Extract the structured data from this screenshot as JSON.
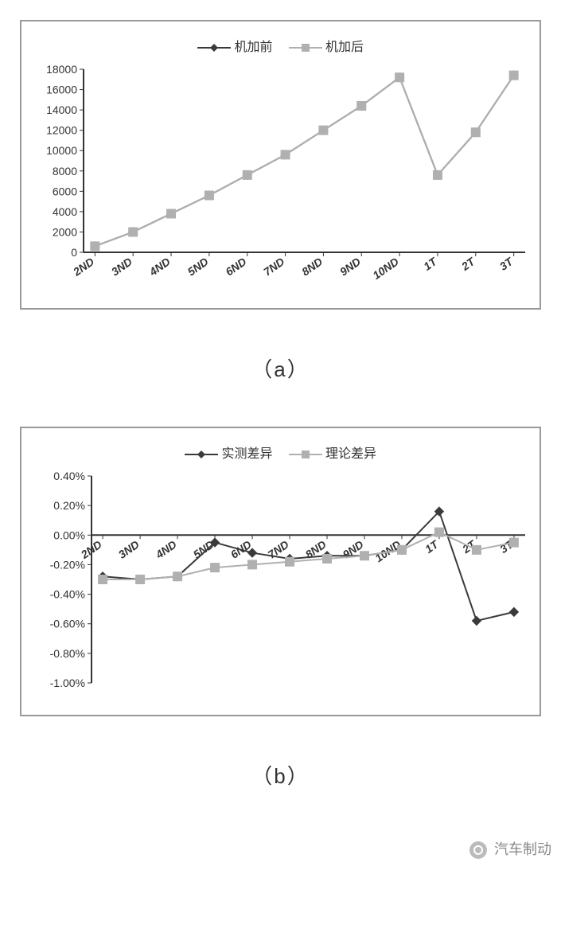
{
  "chart_a": {
    "type": "line",
    "legend": [
      {
        "label": "机加前",
        "color": "#3a3a3a",
        "marker": "diamond"
      },
      {
        "label": "机加后",
        "color": "#b0b0b0",
        "marker": "square"
      }
    ],
    "categories": [
      "2ND",
      "3ND",
      "4ND",
      "5ND",
      "6ND",
      "7ND",
      "8ND",
      "9ND",
      "10ND",
      "1T",
      "2T",
      "3T"
    ],
    "series": [
      {
        "name": "机加前",
        "color": "#3a3a3a",
        "marker": "diamond",
        "values": [
          600,
          2000,
          3800,
          5600,
          7600,
          9600,
          12000,
          14400,
          17200,
          7600,
          11800,
          17400
        ]
      },
      {
        "name": "机加后",
        "color": "#b0b0b0",
        "marker": "square",
        "values": [
          600,
          2000,
          3800,
          5600,
          7600,
          9600,
          12000,
          14400,
          17200,
          7600,
          11800,
          17400
        ]
      }
    ],
    "ylim": [
      0,
      18000
    ],
    "ytick_step": 2000,
    "xlabel_rotation": -35,
    "font_size_axis": 14,
    "font_size_legend": 16,
    "background_color": "#ffffff",
    "border_color": "#999999",
    "axis_color": "#333333",
    "line_width": 2,
    "marker_size": 9,
    "grid": false
  },
  "caption_a": "（a）",
  "chart_b": {
    "type": "line",
    "legend": [
      {
        "label": "实测差异",
        "color": "#3a3a3a",
        "marker": "diamond"
      },
      {
        "label": "理论差异",
        "color": "#b0b0b0",
        "marker": "square"
      }
    ],
    "categories": [
      "2ND",
      "3ND",
      "4ND",
      "5ND",
      "6ND",
      "7ND",
      "8ND",
      "9ND",
      "10ND",
      "1T",
      "2T",
      "3T"
    ],
    "series": [
      {
        "name": "实测差异",
        "color": "#3a3a3a",
        "marker": "diamond",
        "values": [
          -0.28,
          -0.3,
          -0.28,
          -0.05,
          -0.12,
          -0.16,
          -0.14,
          -0.14,
          -0.1,
          0.16,
          -0.58,
          -0.52
        ]
      },
      {
        "name": "理论差异",
        "color": "#b0b0b0",
        "marker": "square",
        "values": [
          -0.3,
          -0.3,
          -0.28,
          -0.22,
          -0.2,
          -0.18,
          -0.16,
          -0.14,
          -0.1,
          0.02,
          -0.1,
          -0.05
        ]
      }
    ],
    "ylim": [
      -1.0,
      0.4
    ],
    "yticks": [
      0.4,
      0.2,
      0.0,
      -0.2,
      -0.4,
      -0.6,
      -0.8,
      -1.0
    ],
    "ytick_format": "percent2",
    "xlabel_rotation": -35,
    "font_size_axis": 14,
    "font_size_legend": 16,
    "background_color": "#ffffff",
    "border_color": "#999999",
    "axis_color": "#333333",
    "line_width": 2,
    "marker_size": 9,
    "grid": false
  },
  "caption_b": "（b）",
  "footer": {
    "icon": "wechat-icon",
    "label": "汽车制动"
  }
}
